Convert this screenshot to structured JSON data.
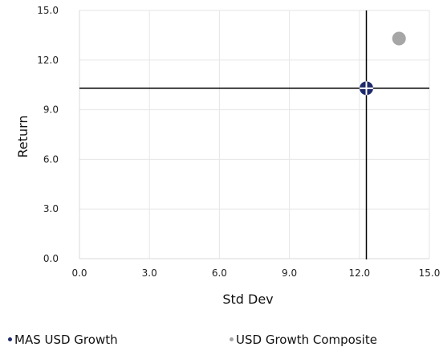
{
  "chart_data": {
    "type": "scatter",
    "xlabel": "Std Dev",
    "ylabel": "Return",
    "xlim": [
      0,
      15
    ],
    "ylim": [
      0,
      15
    ],
    "x_ticks": [
      "0.0",
      "3.0",
      "6.0",
      "9.0",
      "12.0",
      "15.0"
    ],
    "y_ticks": [
      "0.0",
      "3.0",
      "6.0",
      "9.0",
      "12.0",
      "15.0"
    ],
    "grid": true,
    "legend_position": "bottom",
    "crosshair": {
      "x": 12.3,
      "y": 10.3
    },
    "series": [
      {
        "name": "MAS USD Growth",
        "x": 12.3,
        "y": 10.3,
        "color": "#1f2a6b",
        "marker": "crosshair-circle"
      },
      {
        "name": "USD Growth Composite",
        "x": 13.7,
        "y": 13.3,
        "color": "#a6a6a6",
        "marker": "circle"
      }
    ]
  }
}
